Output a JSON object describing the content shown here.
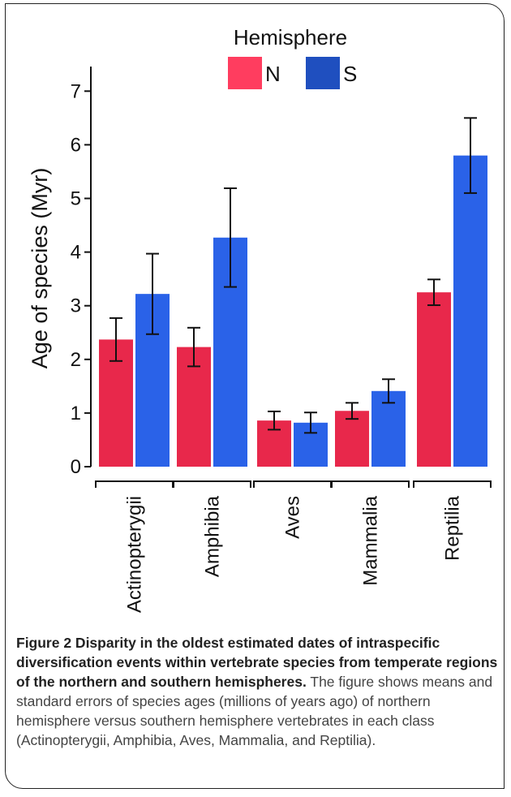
{
  "chart_data": {
    "type": "bar",
    "categories": [
      "Actinopterygii",
      "Amphibia",
      "Aves",
      "Mammalia",
      "Reptilia"
    ],
    "series": [
      {
        "name": "N",
        "color": "#e8284b",
        "values": [
          2.37,
          2.23,
          0.86,
          1.04,
          3.25
        ],
        "errors": [
          0.4,
          0.36,
          0.17,
          0.15,
          0.24
        ]
      },
      {
        "name": "S",
        "color": "#2a62e8",
        "values": [
          3.22,
          4.27,
          0.82,
          1.41,
          5.8
        ],
        "errors": [
          0.75,
          0.92,
          0.19,
          0.22,
          0.7
        ]
      }
    ],
    "legend_title": "Hemisphere",
    "legend_colors": {
      "N": "#ff3d5f",
      "S": "#1f4fbf"
    },
    "ylabel": "Age of species (Myr)",
    "xlabel": "",
    "ylim": [
      0,
      7.4
    ],
    "yticks": [
      0,
      1,
      2,
      3,
      4,
      5,
      6,
      7
    ],
    "grid": false,
    "legend_position": "top"
  },
  "caption": {
    "bold": "Figure 2 Disparity in the oldest estimated dates of intraspecific diversification events within vertebrate species from temperate regions of the northern and southern hemispheres.",
    "text": " The figure shows means and standard errors of species ages (millions of years ago) of northern hemisphere versus southern hemisphere vertebrates in each class (Actinopterygii, Amphibia, Aves, Mammalia, and Reptilia)."
  }
}
